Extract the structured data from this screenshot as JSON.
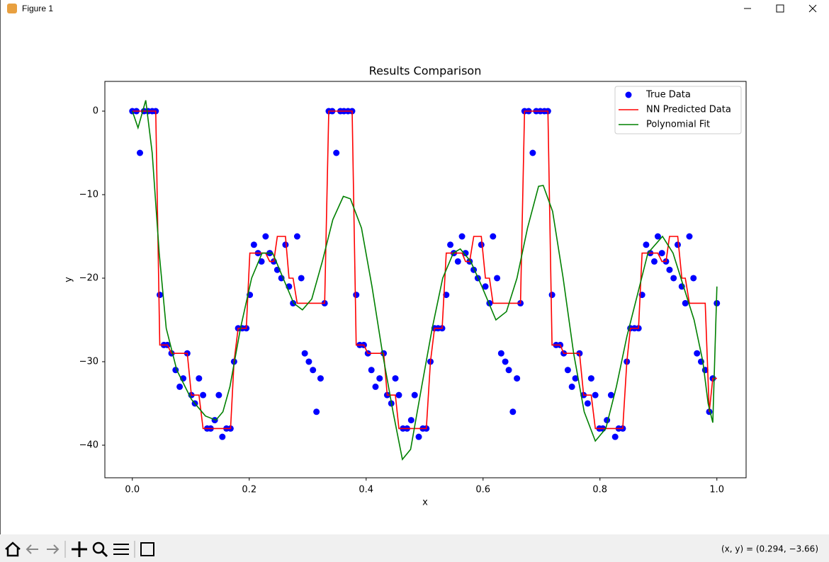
{
  "window": {
    "title": "Figure 1",
    "status": "(x, y) = (0.294, −3.66)"
  },
  "chart_data": {
    "type": "line",
    "title": "Results Comparison",
    "x_label": "x",
    "y_label": "y",
    "xlim": [
      -0.047,
      1.05
    ],
    "ylim": [
      -43.9,
      3.56
    ],
    "xticks": [
      {
        "value": 0,
        "label": "0.0"
      },
      {
        "value": 0.2,
        "label": "0.2"
      },
      {
        "value": 0.4,
        "label": "0.4"
      },
      {
        "value": 0.6,
        "label": "0.6"
      },
      {
        "value": 0.8,
        "label": "0.8"
      },
      {
        "value": 1,
        "label": "1.0"
      }
    ],
    "yticks": [
      0,
      {
        "value": -10,
        "label": "−10"
      },
      {
        "value": -20,
        "label": "−20"
      },
      {
        "value": -30,
        "label": "−30"
      },
      {
        "value": -40,
        "label": "−40"
      }
    ],
    "legend": "upper right",
    "x": [
      0.0,
      0.007,
      0.013,
      0.02,
      0.027,
      0.034,
      0.04,
      0.047,
      0.054,
      0.06,
      0.067,
      0.074,
      0.081,
      0.087,
      0.094,
      0.101,
      0.107,
      0.114,
      0.121,
      0.128,
      0.134,
      0.141,
      0.148,
      0.154,
      0.161,
      0.168,
      0.174,
      0.181,
      0.188,
      0.195,
      0.201,
      0.208,
      0.215,
      0.221,
      0.228,
      0.235,
      0.242,
      0.248,
      0.255,
      0.262,
      0.268,
      0.275,
      0.282,
      0.289,
      0.295,
      0.302,
      0.309,
      0.315,
      0.322,
      0.329,
      0.336,
      0.342,
      0.349,
      0.356,
      0.362,
      0.369,
      0.376,
      0.383,
      0.389,
      0.396,
      0.403,
      0.409,
      0.416,
      0.423,
      0.43,
      0.436,
      0.443,
      0.45,
      0.456,
      0.463,
      0.47,
      0.477,
      0.483,
      0.49,
      0.497,
      0.503,
      0.51,
      0.517,
      0.523,
      0.53,
      0.537,
      0.544,
      0.55,
      0.557,
      0.564,
      0.57,
      0.577,
      0.584,
      0.591,
      0.597,
      0.604,
      0.611,
      0.617,
      0.624,
      0.631,
      0.638,
      0.644,
      0.651,
      0.658,
      0.664,
      0.671,
      0.678,
      0.685,
      0.691,
      0.698,
      0.705,
      0.711,
      0.718,
      0.725,
      0.732,
      0.738,
      0.745,
      0.752,
      0.758,
      0.765,
      0.772,
      0.779,
      0.785,
      0.792,
      0.799,
      0.805,
      0.812,
      0.819,
      0.826,
      0.832,
      0.839,
      0.846,
      0.852,
      0.859,
      0.866,
      0.872,
      0.879,
      0.886,
      0.893,
      0.899,
      0.906,
      0.913,
      0.919,
      0.926,
      0.933,
      0.94,
      0.946,
      0.953,
      0.96,
      0.966,
      0.973,
      0.98,
      0.987,
      0.993,
      1.0
    ],
    "series": [
      {
        "name": "True Data",
        "type": "scatter",
        "color": "#0000ff",
        "values": [
          0,
          0,
          -5,
          0,
          0,
          0,
          0,
          -22,
          -28,
          -28,
          -29,
          -31,
          -33,
          -32,
          -29,
          -34,
          -35,
          -32,
          -34,
          -38,
          -38,
          -37,
          -34,
          -39,
          -38,
          -38,
          -30,
          -26,
          -26,
          -26,
          -22,
          -16,
          -17,
          -18,
          -15,
          -17,
          -18,
          -19,
          -20,
          -16,
          -21,
          -23,
          -15,
          -20,
          -29,
          -30,
          -31,
          -36,
          -32,
          -23,
          0,
          0,
          -5,
          0,
          0,
          0,
          0,
          -22,
          -28,
          -28,
          -29,
          -31,
          -33,
          -32,
          -29,
          -34,
          -35,
          -32,
          -34,
          -38,
          -38,
          -37,
          -34,
          -39,
          -38,
          -38,
          -30,
          -26,
          -26,
          -26,
          -22,
          -16,
          -17,
          -18,
          -15,
          -17,
          -18,
          -19,
          -20,
          -16,
          -21,
          -23,
          -15,
          -20,
          -29,
          -30,
          -31,
          -36,
          -32,
          -23,
          0,
          0,
          -5,
          0,
          0,
          0,
          0,
          -22,
          -28,
          -28,
          -29,
          -31,
          -33,
          -32,
          -29,
          -34,
          -35,
          -32,
          -34,
          -38,
          -38,
          -37,
          -34,
          -39,
          -38,
          -38,
          -30,
          -26,
          -26,
          -26,
          -22,
          -16,
          -17,
          -18,
          -15,
          -17,
          -18,
          -19,
          -20,
          -16,
          -21,
          -23,
          -15,
          -20,
          -29,
          -30,
          -31,
          -36,
          -32,
          -23
        ]
      },
      {
        "name": "NN Predicted Data",
        "type": "line",
        "color": "#ff0000",
        "values": [
          0,
          0,
          0,
          0,
          0,
          0,
          0,
          -28,
          -28,
          -28,
          -29,
          -29,
          -29,
          -29,
          -29,
          -34,
          -34,
          -34,
          -38,
          -38,
          -38,
          -38,
          -38,
          -38,
          -38,
          -38,
          -30,
          -26,
          -26,
          -26,
          -17,
          -17,
          -17,
          -17,
          -17,
          -18,
          -18,
          -15,
          -15,
          -15,
          -20,
          -20,
          -23,
          -23,
          -23,
          -23,
          -23,
          -23,
          -23,
          -23,
          0,
          0,
          0,
          0,
          0,
          0,
          0,
          -28,
          -28,
          -28,
          -29,
          -29,
          -29,
          -29,
          -29,
          -34,
          -34,
          -34,
          -38,
          -38,
          -38,
          -38,
          -38,
          -38,
          -38,
          -38,
          -30,
          -26,
          -26,
          -26,
          -17,
          -17,
          -17,
          -17,
          -17,
          -18,
          -18,
          -15,
          -15,
          -15,
          -20,
          -20,
          -23,
          -23,
          -23,
          -23,
          -23,
          -23,
          -23,
          -23,
          0,
          0,
          0,
          0,
          0,
          0,
          0,
          -28,
          -28,
          -28,
          -29,
          -29,
          -29,
          -29,
          -29,
          -34,
          -34,
          -34,
          -38,
          -38,
          -38,
          -38,
          -38,
          -38,
          -38,
          -38,
          -30,
          -26,
          -26,
          -26,
          -17,
          -17,
          -17,
          -17,
          -17,
          -18,
          -18,
          -15,
          -15,
          -15,
          -20,
          -20,
          -23,
          -23,
          -23,
          -23,
          -23,
          -36,
          -32,
          -32
        ]
      },
      {
        "name": "Polynomial Fit",
        "type": "line",
        "color": "#008000",
        "x": [
          0,
          0.0097,
          0.023,
          0.034,
          0.046,
          0.058,
          0.076,
          0.101,
          0.125,
          0.143,
          0.155,
          0.167,
          0.185,
          0.204,
          0.222,
          0.24,
          0.258,
          0.276,
          0.291,
          0.307,
          0.325,
          0.343,
          0.361,
          0.373,
          0.392,
          0.41,
          0.428,
          0.446,
          0.462,
          0.476,
          0.495,
          0.513,
          0.531,
          0.549,
          0.561,
          0.579,
          0.598,
          0.622,
          0.64,
          0.658,
          0.676,
          0.695,
          0.703,
          0.719,
          0.737,
          0.755,
          0.773,
          0.792,
          0.81,
          0.828,
          0.846,
          0.864,
          0.882,
          0.907,
          0.925,
          0.943,
          0.961,
          0.976,
          0.985,
          0.993,
          1.0
        ],
        "values": [
          0,
          -2,
          1.3,
          -5,
          -17,
          -26,
          -31,
          -34.5,
          -36.5,
          -37,
          -36,
          -33,
          -26,
          -20,
          -17,
          -17,
          -20,
          -23,
          -23.8,
          -22.5,
          -18,
          -13,
          -10.2,
          -10.5,
          -14,
          -21,
          -29,
          -36,
          -41.7,
          -40.5,
          -33,
          -26,
          -20,
          -17,
          -16.5,
          -18,
          -21,
          -25,
          -24,
          -20,
          -14,
          -9,
          -8.9,
          -12,
          -20,
          -29,
          -36,
          -39.5,
          -38,
          -33,
          -27,
          -22,
          -17,
          -15,
          -17,
          -21,
          -25,
          -30,
          -35,
          -37.3,
          -21
        ]
      }
    ]
  }
}
